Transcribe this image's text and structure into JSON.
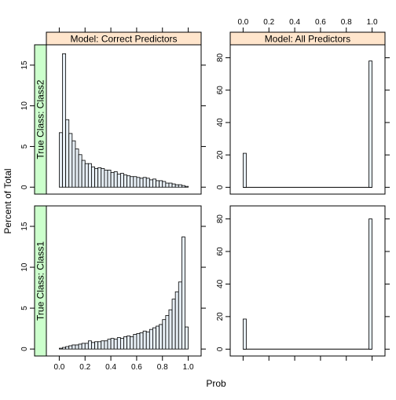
{
  "chart_data": {
    "type": "bar",
    "title": "",
    "xlabel": "Prob",
    "ylabel": "Percent of Total",
    "x_ticks": [
      "0.0",
      "0.2",
      "0.4",
      "0.6",
      "0.8",
      "1.0"
    ],
    "x_tick_values": [
      0.0,
      0.2,
      0.4,
      0.6,
      0.8,
      1.0
    ],
    "xlim": [
      -0.1,
      1.1
    ],
    "bin_width": 0.025,
    "layout": "2 columns x 2 rows",
    "strip_colors": {
      "model": "#ffe5cc",
      "true_class": "#ccffcc"
    },
    "bar_fill": "#e6eef5",
    "columns": [
      {
        "strip_label": "Model: Correct Predictors",
        "y_ticks": [
          "0",
          "5",
          "10",
          "15"
        ],
        "y_tick_values": [
          0,
          5,
          10,
          15
        ],
        "ylim": [
          -0.85,
          17.5
        ]
      },
      {
        "strip_label": "Model: All Predictors",
        "y_ticks": [
          "0",
          "20",
          "40",
          "60",
          "80"
        ],
        "y_tick_values": [
          0,
          20,
          40,
          60,
          80
        ],
        "ylim": [
          -4.2,
          88
        ]
      }
    ],
    "rows": [
      {
        "strip_label": "True Class: Class2"
      },
      {
        "strip_label": "True Class: Class1"
      }
    ],
    "panels": [
      {
        "model": "Model: Correct Predictors",
        "true_class": "True Class: Class2",
        "bin_starts": [
          0.0,
          0.025,
          0.05,
          0.075,
          0.1,
          0.125,
          0.15,
          0.175,
          0.2,
          0.225,
          0.25,
          0.275,
          0.3,
          0.325,
          0.35,
          0.375,
          0.4,
          0.425,
          0.45,
          0.475,
          0.5,
          0.525,
          0.55,
          0.575,
          0.6,
          0.625,
          0.65,
          0.675,
          0.7,
          0.725,
          0.75,
          0.775,
          0.8,
          0.825,
          0.85,
          0.875,
          0.9,
          0.925,
          0.95,
          0.975
        ],
        "values": [
          6.7,
          16.4,
          8.3,
          6.6,
          5.7,
          4.7,
          4.0,
          3.3,
          2.9,
          2.9,
          2.5,
          2.3,
          2.4,
          2.3,
          2.1,
          2.1,
          1.8,
          1.9,
          1.6,
          1.7,
          1.5,
          1.4,
          1.3,
          1.3,
          1.2,
          1.1,
          1.2,
          1.1,
          0.9,
          1.0,
          0.8,
          0.8,
          0.7,
          0.5,
          0.5,
          0.4,
          0.3,
          0.3,
          0.2,
          0.1
        ]
      },
      {
        "model": "Model: All Predictors",
        "true_class": "True Class: Class2",
        "bin_starts": [
          0.0,
          0.975
        ],
        "values": [
          21.0,
          78.0
        ],
        "other_bins": 0
      },
      {
        "model": "Model: Correct Predictors",
        "true_class": "True Class: Class1",
        "bin_starts": [
          0.0,
          0.025,
          0.05,
          0.075,
          0.1,
          0.125,
          0.15,
          0.175,
          0.2,
          0.225,
          0.25,
          0.275,
          0.3,
          0.325,
          0.35,
          0.375,
          0.4,
          0.425,
          0.45,
          0.475,
          0.5,
          0.525,
          0.55,
          0.575,
          0.6,
          0.625,
          0.65,
          0.675,
          0.7,
          0.725,
          0.75,
          0.775,
          0.8,
          0.825,
          0.85,
          0.875,
          0.9,
          0.925,
          0.95,
          0.975
        ],
        "values": [
          0.1,
          0.2,
          0.3,
          0.4,
          0.5,
          0.5,
          0.6,
          0.7,
          0.7,
          1.0,
          0.8,
          0.9,
          0.9,
          1.0,
          1.0,
          1.2,
          1.3,
          1.2,
          1.4,
          1.3,
          1.5,
          1.6,
          1.5,
          1.8,
          1.9,
          2.0,
          2.2,
          2.1,
          2.4,
          2.6,
          2.8,
          3.0,
          3.6,
          4.1,
          4.8,
          6.1,
          7.0,
          8.2,
          13.7,
          2.7
        ]
      },
      {
        "model": "Model: All Predictors",
        "true_class": "True Class: Class1",
        "bin_starts": [
          0.0,
          0.975
        ],
        "values": [
          18.5,
          80.0
        ],
        "other_bins": 0
      }
    ]
  }
}
